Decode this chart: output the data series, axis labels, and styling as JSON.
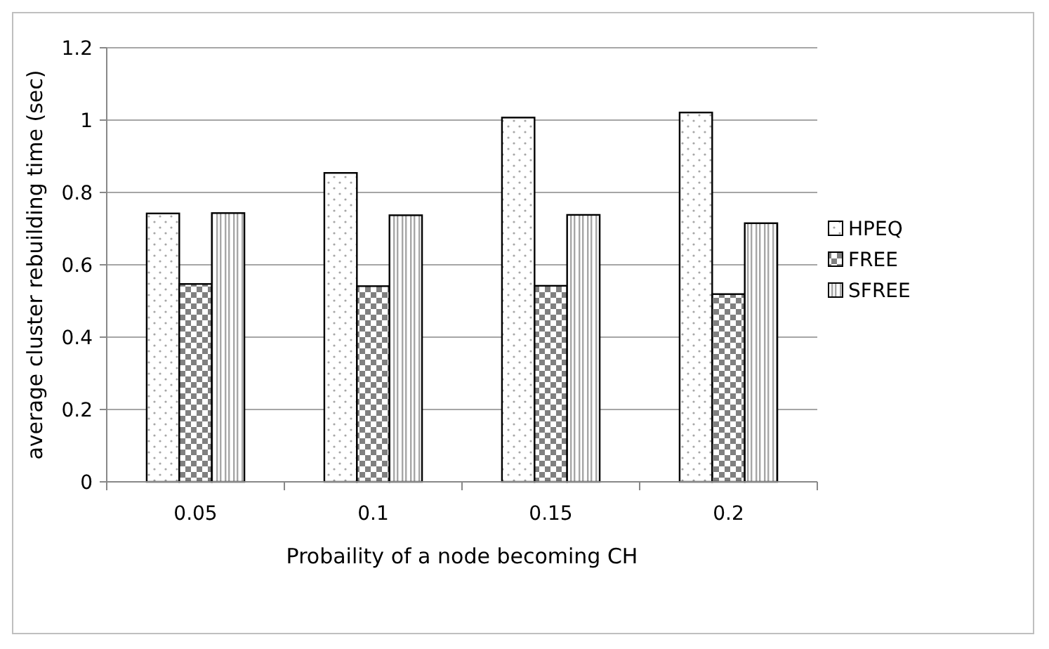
{
  "chart_data": {
    "type": "bar",
    "xlabel": "Probaility of a node becoming CH",
    "ylabel": "average cluster rebuilding time (sec)",
    "categories": [
      "0.05",
      "0.1",
      "0.15",
      "0.2"
    ],
    "series": [
      {
        "name": "HPEQ",
        "color": "#000000",
        "values": [
          0.742,
          0.854,
          1.007,
          1.021
        ]
      },
      {
        "name": "FREE",
        "color": "#000000",
        "values": [
          0.547,
          0.541,
          0.542,
          0.519
        ]
      },
      {
        "name": "SFREE",
        "color": "#000000",
        "values": [
          0.743,
          0.737,
          0.738,
          0.715
        ]
      }
    ],
    "ylim": [
      0,
      1.2
    ],
    "yticks": [
      0,
      0.2,
      0.4,
      0.6,
      0.8,
      1,
      1.2
    ],
    "grid": "y",
    "legend": "right"
  }
}
